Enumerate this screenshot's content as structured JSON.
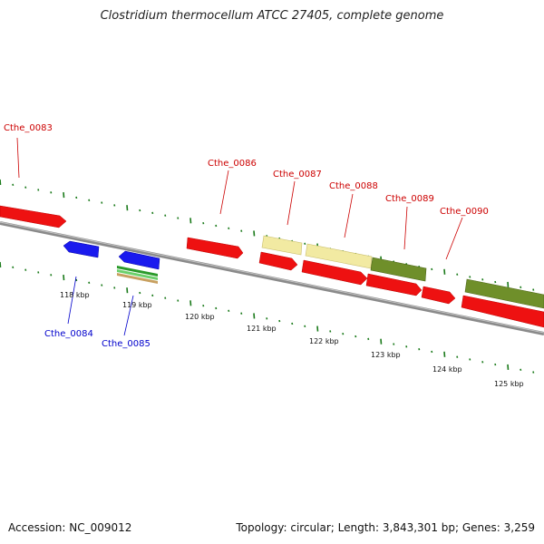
{
  "title": "Clostridium thermocellum ATCC 27405, complete genome",
  "footer": {
    "accession": "Accession: NC_009012",
    "summary": "Topology: circular; Length: 3,843,301 bp; Genes: 3,259"
  },
  "colors": {
    "forward": "#ee1111",
    "reverse": "#1a1aee",
    "pale": "#f2eaa2",
    "olive": "#6f8f2a",
    "ticks": "#1a7a1a",
    "backbone": "#888888"
  },
  "scale_labels": [
    "118 kbp",
    "119 kbp",
    "120 kbp",
    "121 kbp",
    "122 kbp",
    "123 kbp",
    "124 kbp",
    "125 kbp"
  ],
  "gene_labels": [
    {
      "name": "Cthe_0083",
      "strand": "forward"
    },
    {
      "name": "Cthe_0084",
      "strand": "reverse"
    },
    {
      "name": "Cthe_0085",
      "strand": "reverse"
    },
    {
      "name": "Cthe_0086",
      "strand": "forward"
    },
    {
      "name": "Cthe_0087",
      "strand": "forward"
    },
    {
      "name": "Cthe_0088",
      "strand": "forward"
    },
    {
      "name": "Cthe_0089",
      "strand": "forward"
    },
    {
      "name": "Cthe_0090",
      "strand": "forward"
    }
  ]
}
